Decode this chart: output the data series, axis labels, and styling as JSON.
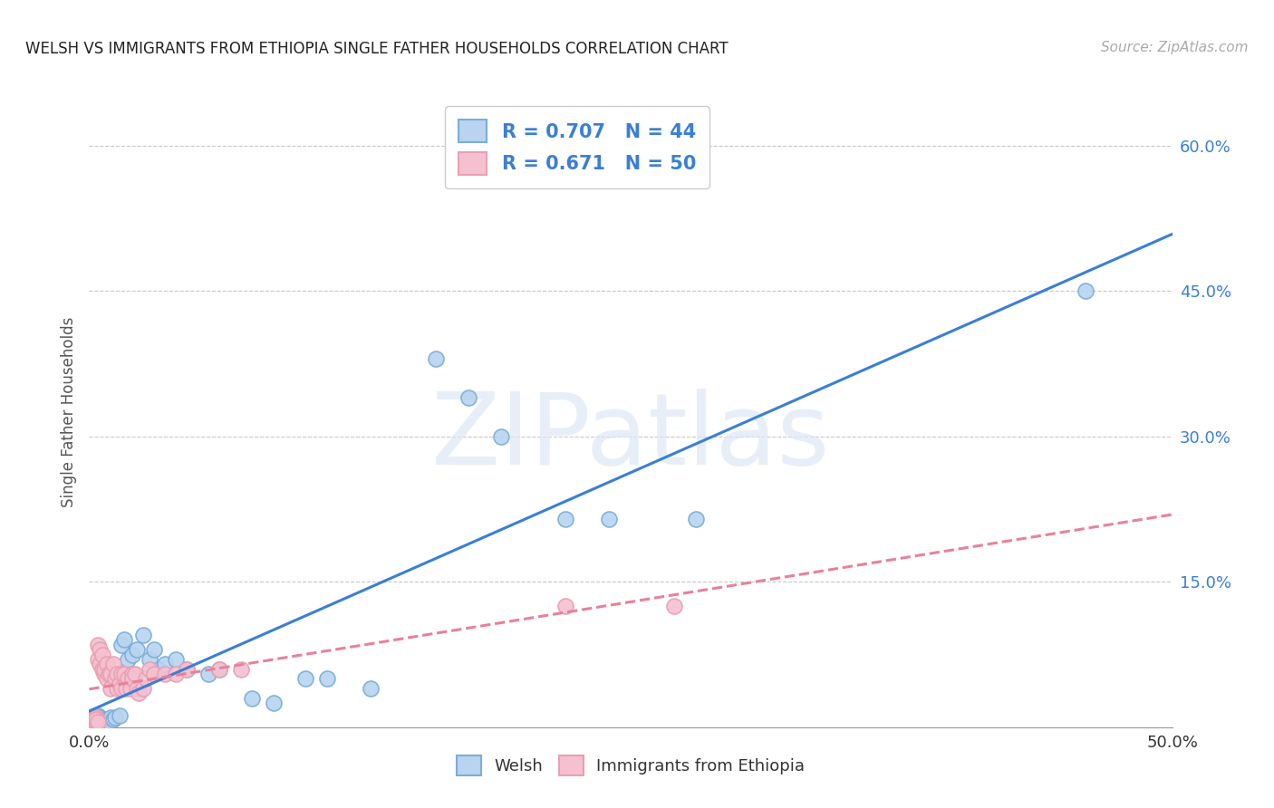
{
  "title": "WELSH VS IMMIGRANTS FROM ETHIOPIA SINGLE FATHER HOUSEHOLDS CORRELATION CHART",
  "source": "Source: ZipAtlas.com",
  "ylabel": "Single Father Households",
  "ytick_labels": [
    "15.0%",
    "30.0%",
    "45.0%",
    "60.0%"
  ],
  "ytick_values": [
    0.15,
    0.3,
    0.45,
    0.6
  ],
  "xlim": [
    0.0,
    0.5
  ],
  "ylim": [
    0.0,
    0.65
  ],
  "welsh_scatter": [
    [
      0.001,
      0.005
    ],
    [
      0.001,
      0.008
    ],
    [
      0.002,
      0.005
    ],
    [
      0.002,
      0.01
    ],
    [
      0.003,
      0.003
    ],
    [
      0.003,
      0.008
    ],
    [
      0.004,
      0.005
    ],
    [
      0.004,
      0.012
    ],
    [
      0.005,
      0.003
    ],
    [
      0.005,
      0.01
    ],
    [
      0.006,
      0.005
    ],
    [
      0.007,
      0.008
    ],
    [
      0.008,
      0.008
    ],
    [
      0.009,
      0.005
    ],
    [
      0.01,
      0.01
    ],
    [
      0.011,
      0.008
    ],
    [
      0.012,
      0.01
    ],
    [
      0.014,
      0.012
    ],
    [
      0.015,
      0.085
    ],
    [
      0.016,
      0.09
    ],
    [
      0.018,
      0.07
    ],
    [
      0.02,
      0.075
    ],
    [
      0.022,
      0.08
    ],
    [
      0.025,
      0.095
    ],
    [
      0.028,
      0.07
    ],
    [
      0.03,
      0.08
    ],
    [
      0.032,
      0.06
    ],
    [
      0.035,
      0.065
    ],
    [
      0.04,
      0.07
    ],
    [
      0.045,
      0.06
    ],
    [
      0.055,
      0.055
    ],
    [
      0.06,
      0.06
    ],
    [
      0.075,
      0.03
    ],
    [
      0.085,
      0.025
    ],
    [
      0.1,
      0.05
    ],
    [
      0.11,
      0.05
    ],
    [
      0.13,
      0.04
    ],
    [
      0.16,
      0.38
    ],
    [
      0.175,
      0.34
    ],
    [
      0.19,
      0.3
    ],
    [
      0.22,
      0.215
    ],
    [
      0.24,
      0.215
    ],
    [
      0.28,
      0.215
    ],
    [
      0.46,
      0.45
    ]
  ],
  "ethiopia_scatter": [
    [
      0.001,
      0.005
    ],
    [
      0.001,
      0.008
    ],
    [
      0.001,
      0.01
    ],
    [
      0.002,
      0.005
    ],
    [
      0.002,
      0.01
    ],
    [
      0.002,
      0.008
    ],
    [
      0.003,
      0.005
    ],
    [
      0.003,
      0.01
    ],
    [
      0.003,
      0.008
    ],
    [
      0.004,
      0.005
    ],
    [
      0.004,
      0.07
    ],
    [
      0.004,
      0.085
    ],
    [
      0.005,
      0.08
    ],
    [
      0.005,
      0.065
    ],
    [
      0.006,
      0.075
    ],
    [
      0.006,
      0.06
    ],
    [
      0.007,
      0.055
    ],
    [
      0.007,
      0.06
    ],
    [
      0.008,
      0.065
    ],
    [
      0.008,
      0.05
    ],
    [
      0.009,
      0.055
    ],
    [
      0.01,
      0.055
    ],
    [
      0.01,
      0.04
    ],
    [
      0.011,
      0.065
    ],
    [
      0.012,
      0.05
    ],
    [
      0.013,
      0.055
    ],
    [
      0.013,
      0.04
    ],
    [
      0.014,
      0.045
    ],
    [
      0.015,
      0.055
    ],
    [
      0.015,
      0.04
    ],
    [
      0.016,
      0.055
    ],
    [
      0.017,
      0.04
    ],
    [
      0.018,
      0.05
    ],
    [
      0.019,
      0.04
    ],
    [
      0.02,
      0.055
    ],
    [
      0.02,
      0.05
    ],
    [
      0.021,
      0.055
    ],
    [
      0.022,
      0.04
    ],
    [
      0.023,
      0.035
    ],
    [
      0.025,
      0.04
    ],
    [
      0.026,
      0.05
    ],
    [
      0.028,
      0.06
    ],
    [
      0.03,
      0.055
    ],
    [
      0.035,
      0.055
    ],
    [
      0.04,
      0.055
    ],
    [
      0.045,
      0.06
    ],
    [
      0.06,
      0.06
    ],
    [
      0.07,
      0.06
    ],
    [
      0.22,
      0.125
    ],
    [
      0.27,
      0.125
    ]
  ],
  "welsh_line_color": "#3a7fd5",
  "ethiopia_line_color": "#e8819a",
  "welsh_scatter_facecolor": "#b8d4f0",
  "ethiopia_scatter_facecolor": "#f5c0d0",
  "welsh_scatter_edgecolor": "#7aadd8",
  "ethiopia_scatter_edgecolor": "#e8a0b4",
  "welsh_R": 0.707,
  "welsh_N": 44,
  "ethiopia_R": 0.671,
  "ethiopia_N": 50,
  "watermark": "ZIPatlas",
  "background_color": "#ffffff",
  "grid_color": "#c8c8c8"
}
